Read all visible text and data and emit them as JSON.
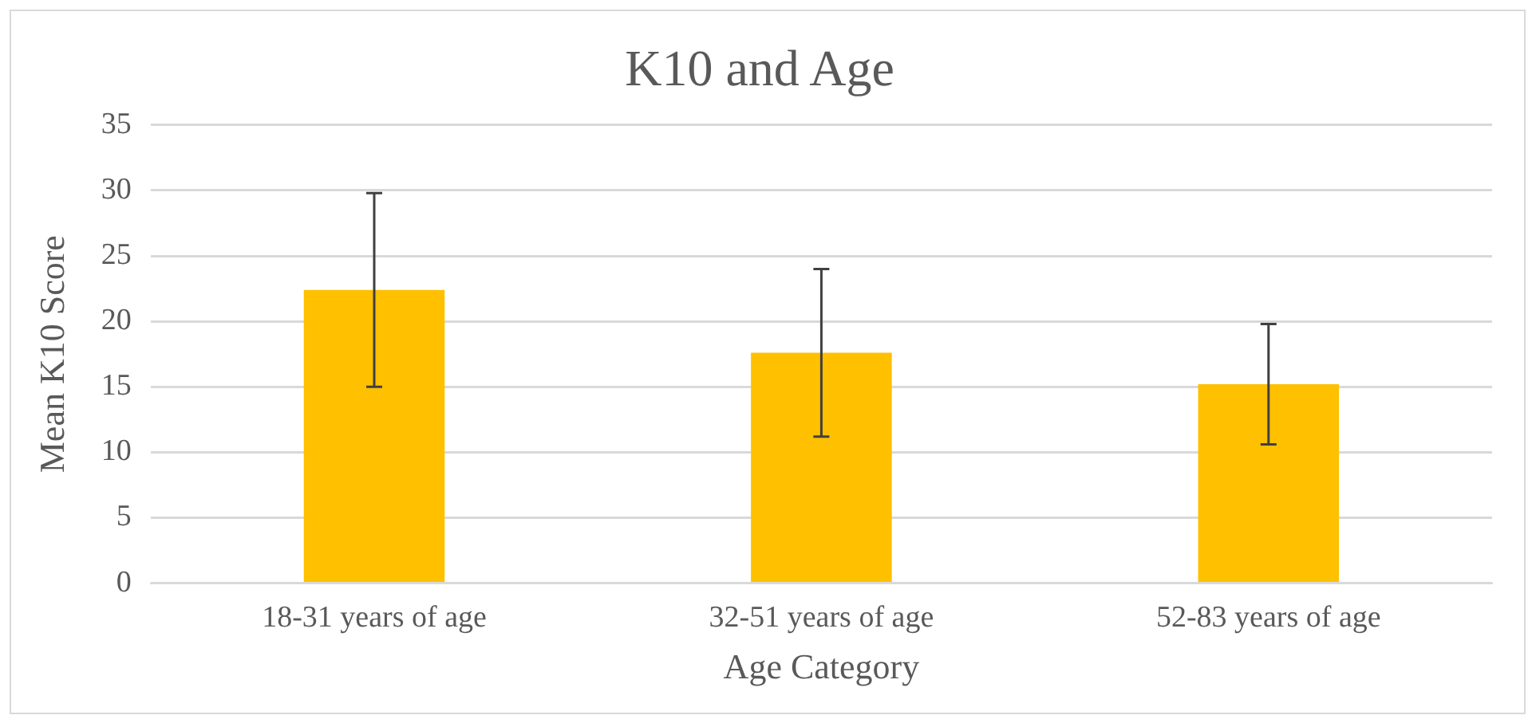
{
  "chart_data": {
    "type": "bar",
    "title": "K10 and Age",
    "xlabel": "Age Category",
    "ylabel": "Mean K10 Score",
    "categories": [
      "18-31 years of age",
      "32-51 years of age",
      "52-83 years of age"
    ],
    "values": [
      22.4,
      17.6,
      15.2
    ],
    "errors": [
      7.4,
      6.4,
      4.6
    ],
    "color": "#ffc000",
    "ylim": [
      0,
      35
    ],
    "yticks": [
      0,
      5,
      10,
      15,
      20,
      25,
      30,
      35
    ],
    "grid": "y",
    "legend": false
  }
}
